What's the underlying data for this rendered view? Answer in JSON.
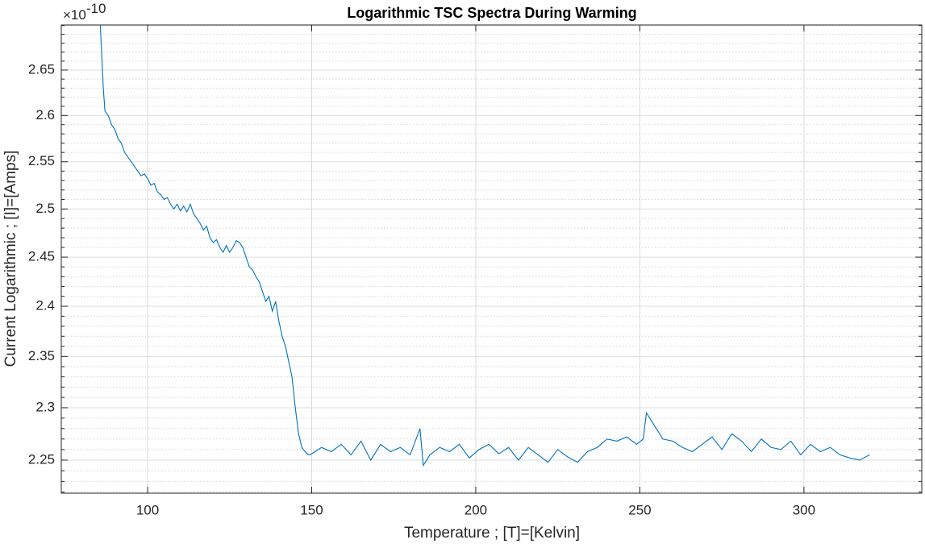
{
  "chart_data": {
    "type": "line",
    "title": "Logarithmic TSC Spectra During Warming",
    "x_label": "Temperature ; [T]=[Kelvin]",
    "y_label": "Current Logarithmic ; [I]=[Amps]",
    "y_multiplier_base": "×10",
    "y_multiplier_exponent": "-10",
    "yscale": "log",
    "grid": true,
    "minor_grid": true,
    "xlim": [
      73.7,
      335.9
    ],
    "xticks": [
      100,
      150,
      200,
      250,
      300
    ],
    "ylim": [
      2.219,
      2.7006
    ],
    "yticks": [
      2.25,
      2.3,
      2.35,
      2.4,
      2.45,
      2.5,
      2.55,
      2.6,
      2.65
    ],
    "yminorticks": [
      2.22,
      2.23,
      2.24,
      2.26,
      2.27,
      2.28,
      2.29,
      2.31,
      2.32,
      2.33,
      2.34,
      2.36,
      2.37,
      2.38,
      2.39,
      2.41,
      2.42,
      2.43,
      2.44,
      2.46,
      2.47,
      2.48,
      2.49,
      2.51,
      2.52,
      2.53,
      2.54,
      2.56,
      2.57,
      2.58,
      2.59,
      2.61,
      2.62,
      2.63,
      2.64,
      2.66,
      2.67,
      2.68,
      2.69,
      2.7
    ],
    "series": [
      {
        "color": "#0072bd",
        "x": [
          85.6,
          86.5,
          87,
          88,
          89,
          90,
          91,
          92,
          93,
          94,
          95,
          96,
          97,
          98,
          99,
          100,
          101,
          102,
          103,
          104,
          105,
          106,
          107,
          108,
          109,
          110,
          111,
          112,
          113,
          114,
          115,
          116,
          117,
          118,
          119,
          120,
          121,
          122,
          123,
          124,
          125,
          126,
          127,
          128,
          129,
          130,
          131,
          132,
          133,
          134,
          135,
          136,
          137,
          138,
          139,
          140,
          141,
          142,
          143,
          144,
          145,
          146,
          147,
          148,
          149,
          150,
          153,
          156,
          159,
          162,
          165,
          168,
          171,
          174,
          177,
          180,
          183,
          184,
          186,
          189,
          192,
          195,
          198,
          201,
          204,
          207,
          210,
          213,
          216,
          219,
          222,
          225,
          228,
          231,
          234,
          237,
          240,
          243,
          246,
          249,
          251,
          252,
          254,
          257,
          260,
          263,
          266,
          269,
          272,
          275,
          278,
          281,
          284,
          287,
          290,
          293,
          296,
          299,
          302,
          305,
          308,
          311,
          314,
          317,
          320
        ],
        "values": [
          2.7,
          2.63,
          2.605,
          2.6,
          2.59,
          2.585,
          2.575,
          2.57,
          2.56,
          2.555,
          2.55,
          2.545,
          2.54,
          2.535,
          2.537,
          2.532,
          2.525,
          2.527,
          2.518,
          2.515,
          2.51,
          2.512,
          2.505,
          2.5,
          2.505,
          2.498,
          2.503,
          2.497,
          2.505,
          2.495,
          2.49,
          2.485,
          2.478,
          2.482,
          2.47,
          2.465,
          2.468,
          2.46,
          2.455,
          2.462,
          2.455,
          2.46,
          2.467,
          2.465,
          2.46,
          2.45,
          2.44,
          2.437,
          2.43,
          2.425,
          2.415,
          2.405,
          2.41,
          2.395,
          2.405,
          2.385,
          2.37,
          2.36,
          2.345,
          2.33,
          2.3,
          2.275,
          2.262,
          2.258,
          2.255,
          2.256,
          2.262,
          2.258,
          2.265,
          2.255,
          2.268,
          2.25,
          2.265,
          2.258,
          2.262,
          2.255,
          2.28,
          2.245,
          2.255,
          2.262,
          2.258,
          2.265,
          2.252,
          2.26,
          2.265,
          2.256,
          2.262,
          2.25,
          2.262,
          2.255,
          2.248,
          2.26,
          2.253,
          2.248,
          2.258,
          2.262,
          2.27,
          2.268,
          2.272,
          2.265,
          2.27,
          2.295,
          2.285,
          2.27,
          2.268,
          2.262,
          2.258,
          2.265,
          2.272,
          2.26,
          2.275,
          2.268,
          2.258,
          2.27,
          2.262,
          2.26,
          2.268,
          2.255,
          2.265,
          2.258,
          2.262,
          2.255,
          2.252,
          2.25,
          2.255
        ]
      }
    ]
  }
}
